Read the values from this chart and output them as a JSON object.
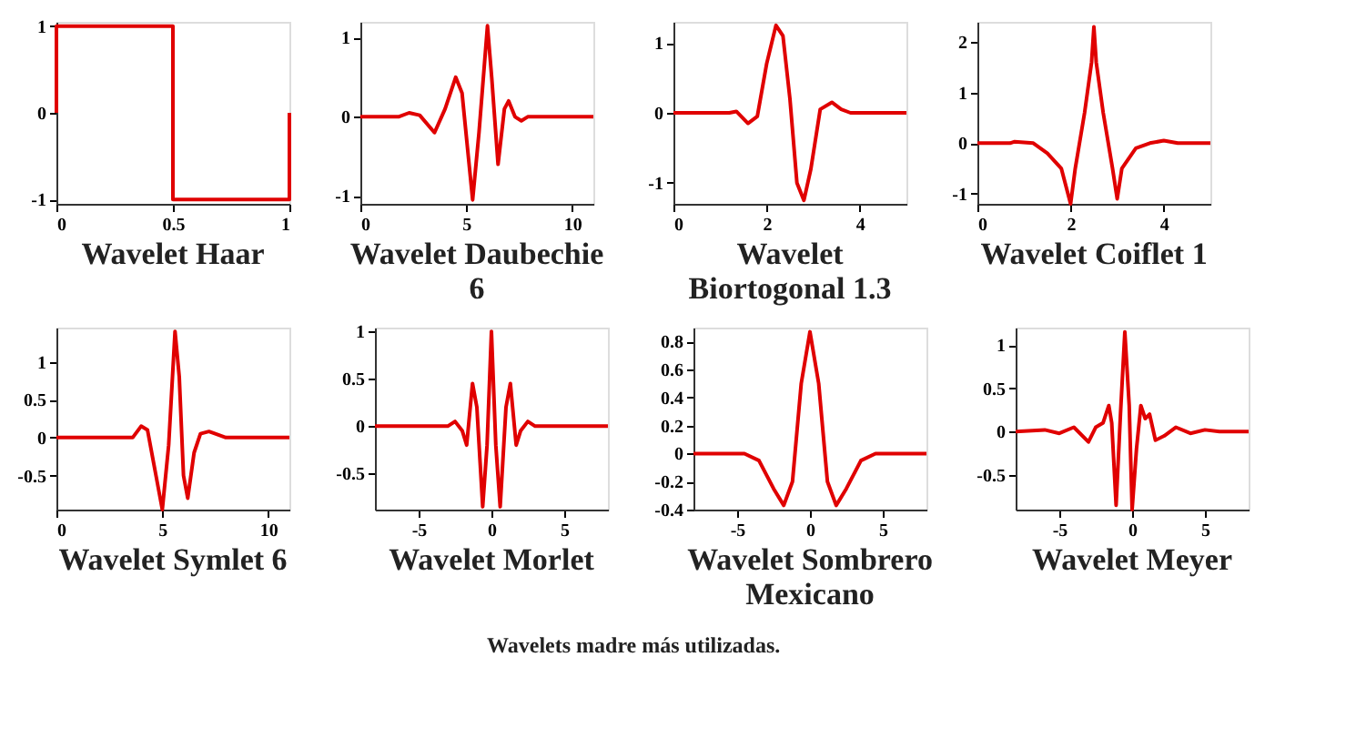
{
  "chart_data": [
    {
      "type": "line",
      "title": "Wavelet Haar",
      "color": "#e00000",
      "x": [
        0,
        0,
        0.5,
        0.5,
        1,
        1
      ],
      "values": [
        0,
        1,
        1,
        -1,
        -1,
        0
      ],
      "xlim": [
        0,
        1
      ],
      "ylim": [
        -1.05,
        1.05
      ],
      "xticks": [
        0,
        0.5,
        1
      ],
      "yticks": [
        -1,
        0,
        1
      ],
      "grid": false
    },
    {
      "type": "line",
      "title": "Wavelet Daubechie 6",
      "color": "#e00000",
      "x": [
        0,
        1.8,
        2.3,
        2.8,
        3.5,
        4.0,
        4.5,
        4.8,
        5.3,
        5.6,
        6.0,
        6.2,
        6.5,
        6.8,
        7.0,
        7.3,
        7.6,
        7.9,
        11
      ],
      "values": [
        0,
        0,
        0.05,
        0.02,
        -0.2,
        0.1,
        0.5,
        0.3,
        -1.05,
        -0.2,
        1.15,
        0.5,
        -0.6,
        0.1,
        0.2,
        0.0,
        -0.05,
        0,
        0
      ],
      "xlim": [
        0,
        11
      ],
      "ylim": [
        -1.1,
        1.2
      ],
      "xticks": [
        0,
        5,
        10
      ],
      "yticks": [
        -1,
        0,
        1
      ],
      "grid": false
    },
    {
      "type": "line",
      "title": "Wavelet Biortogonal 1.3",
      "color": "#e00000",
      "x": [
        0,
        1.2,
        1.35,
        1.6,
        1.8,
        2.0,
        2.2,
        2.35,
        2.5,
        2.65,
        2.8,
        2.95,
        3.15,
        3.4,
        3.6,
        3.8,
        5
      ],
      "values": [
        0,
        0,
        0.02,
        -0.15,
        -0.05,
        0.7,
        1.25,
        1.1,
        0.2,
        -1.0,
        -1.25,
        -0.8,
        0.05,
        0.15,
        0.05,
        0,
        0
      ],
      "xlim": [
        0,
        5
      ],
      "ylim": [
        -1.3,
        1.3
      ],
      "xticks": [
        0,
        2,
        4
      ],
      "yticks": [
        -1,
        0,
        1
      ],
      "grid": false
    },
    {
      "type": "line",
      "title": "Wavelet Coiflet 1",
      "color": "#e00000",
      "x": [
        0,
        0.7,
        0.8,
        1.2,
        1.5,
        1.8,
        2.0,
        2.1,
        2.3,
        2.45,
        2.5,
        2.55,
        2.7,
        2.9,
        3.0,
        3.1,
        3.4,
        3.7,
        4.0,
        4.3,
        5
      ],
      "values": [
        0,
        0,
        0.03,
        0,
        -0.2,
        -0.5,
        -1.2,
        -0.5,
        0.6,
        1.6,
        2.3,
        1.6,
        0.6,
        -0.5,
        -1.1,
        -0.5,
        -0.1,
        0,
        0.05,
        0,
        0
      ],
      "xlim": [
        0,
        5
      ],
      "ylim": [
        -1.2,
        2.4
      ],
      "xticks": [
        0,
        2,
        4
      ],
      "yticks": [
        -1,
        0,
        1,
        2
      ],
      "grid": false
    },
    {
      "type": "line",
      "title": "Wavelet Symlet 6",
      "color": "#e00000",
      "x": [
        0,
        3.6,
        4.0,
        4.3,
        4.7,
        5.0,
        5.3,
        5.6,
        5.8,
        6.0,
        6.2,
        6.5,
        6.8,
        7.2,
        7.5,
        8,
        11
      ],
      "values": [
        0,
        0,
        0.15,
        0.1,
        -0.5,
        -0.95,
        -0.1,
        1.4,
        0.8,
        -0.5,
        -0.8,
        -0.2,
        0.05,
        0.08,
        0.05,
        0,
        0
      ],
      "xlim": [
        0,
        11
      ],
      "ylim": [
        -0.95,
        1.45
      ],
      "xticks": [
        0,
        5,
        10
      ],
      "yticks": [
        -0.5,
        0,
        0.5,
        1
      ],
      "grid": false
    },
    {
      "type": "line",
      "title": "Wavelet Morlet",
      "color": "#e00000",
      "x": [
        -8,
        -3,
        -2.5,
        -2.0,
        -1.7,
        -1.3,
        -1.0,
        -0.6,
        -0.3,
        0,
        0.3,
        0.6,
        1.0,
        1.3,
        1.7,
        2.0,
        2.5,
        3,
        8
      ],
      "values": [
        0,
        0,
        0.05,
        -0.05,
        -0.2,
        0.45,
        0.2,
        -0.85,
        -0.2,
        1.0,
        -0.2,
        -0.85,
        0.2,
        0.45,
        -0.2,
        -0.05,
        0.05,
        0,
        0
      ],
      "xlim": [
        -8,
        8
      ],
      "ylim": [
        -0.88,
        1.04
      ],
      "xticks": [
        -5,
        0,
        5
      ],
      "yticks": [
        -0.5,
        0,
        0.5,
        1
      ],
      "grid": false
    },
    {
      "type": "line",
      "title": "Wavelet Sombrero Mexicano",
      "color": "#e00000",
      "x": [
        -8,
        -4.5,
        -3.5,
        -2.5,
        -1.8,
        -1.2,
        -0.6,
        0,
        0.6,
        1.2,
        1.8,
        2.5,
        3.5,
        4.5,
        8
      ],
      "values": [
        0,
        0,
        -0.05,
        -0.25,
        -0.37,
        -0.2,
        0.5,
        0.87,
        0.5,
        -0.2,
        -0.37,
        -0.25,
        -0.05,
        0,
        0
      ],
      "xlim": [
        -8,
        8
      ],
      "ylim": [
        -0.4,
        0.9
      ],
      "xticks": [
        -5,
        0,
        5
      ],
      "yticks": [
        -0.4,
        -0.2,
        0,
        0.2,
        0.4,
        0.6,
        0.8
      ],
      "grid": false
    },
    {
      "type": "line",
      "title": "Wavelet Meyer",
      "color": "#e00000",
      "x": [
        -8,
        -6,
        -5,
        -4,
        -3,
        -2.5,
        -2,
        -1.6,
        -1.4,
        -1.1,
        -0.8,
        -0.5,
        -0.2,
        0,
        0.3,
        0.6,
        0.9,
        1.2,
        1.6,
        2.2,
        3,
        4,
        5,
        6,
        8
      ],
      "values": [
        0,
        0.02,
        -0.02,
        0.05,
        -0.12,
        0.05,
        0.1,
        0.3,
        0.1,
        -0.85,
        0.2,
        1.15,
        0.3,
        -0.9,
        -0.2,
        0.3,
        0.15,
        0.2,
        -0.1,
        -0.05,
        0.05,
        -0.02,
        0.02,
        0,
        0
      ],
      "xlim": [
        -8,
        8
      ],
      "ylim": [
        -0.9,
        1.2
      ],
      "xticks": [
        -5,
        0,
        5
      ],
      "yticks": [
        -0.5,
        0,
        0.5,
        1
      ],
      "grid": false,
      "annotations": [
        "Wavelets madre más utilizadas."
      ]
    }
  ]
}
